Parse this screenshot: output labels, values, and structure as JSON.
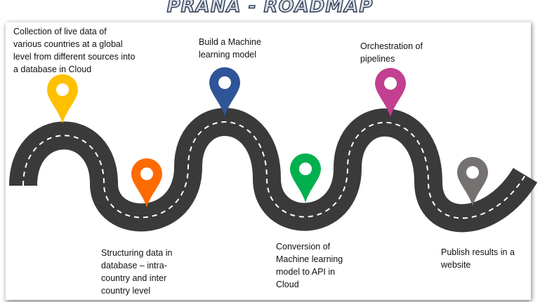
{
  "title": "PRANA - ROADMAP",
  "steps": [
    {
      "text": "Collection of live data of various countries at a global level from different sources into a database in Cloud",
      "color": "#ffc000"
    },
    {
      "text": "Structuring data in database – intra-country and inter country level",
      "color": "#fe6a00"
    },
    {
      "text": "Build a Machine learning model",
      "color": "#2e5597"
    },
    {
      "text": "Conversion of Machine learning model to API in Cloud",
      "color": "#00b04f"
    },
    {
      "text": "Orchestration of pipelines",
      "color": "#c2408f"
    },
    {
      "text": "Publish results in a website",
      "color": "#767171"
    }
  ],
  "colors": {
    "road": "#3a3a3a",
    "dash": "#ffffff"
  }
}
